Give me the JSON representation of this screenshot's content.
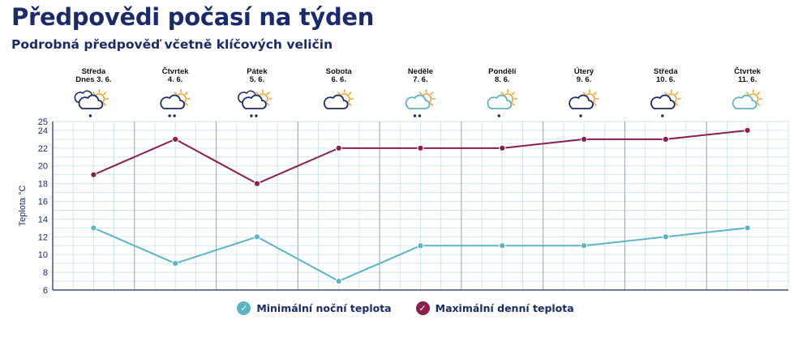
{
  "header": {
    "title": "Předpovědi počasí na týden",
    "subtitle": "Podrobná předpověď včetně klíčových veličin"
  },
  "colors": {
    "min_series": "#5ab4c5",
    "max_series": "#8b1d4f",
    "grid": "#cfe6ee",
    "separator": "#9aa6b8",
    "axis": "#1b2a6b",
    "sun": "#f0a330",
    "cloud_outline": "#1b2a6b",
    "cloud_light": "#5ab4c5"
  },
  "days": [
    {
      "day": "Středa",
      "date": "Dnes 3. 6.",
      "icon": "cloud-sun-rain-icon",
      "cloud": "dark-double",
      "rain": 1
    },
    {
      "day": "Čtvrtek",
      "date": "4. 6.",
      "icon": "cloud-sun-rain-icon",
      "cloud": "dark",
      "rain": 2
    },
    {
      "day": "Pátek",
      "date": "5. 6.",
      "icon": "cloud-sun-rain-icon",
      "cloud": "dark-double",
      "rain": 2
    },
    {
      "day": "Sobota",
      "date": "6. 6.",
      "icon": "cloud-sun-icon",
      "cloud": "dark",
      "rain": 0
    },
    {
      "day": "Neděle",
      "date": "7. 6.",
      "icon": "cloud-sun-rain-icon",
      "cloud": "light",
      "rain": 2
    },
    {
      "day": "Pondělí",
      "date": "8. 6.",
      "icon": "cloud-sun-rain-icon",
      "cloud": "light",
      "rain": 1
    },
    {
      "day": "Úterý",
      "date": "9. 6.",
      "icon": "cloud-sun-rain-icon",
      "cloud": "dark",
      "rain": 1
    },
    {
      "day": "Středa",
      "date": "10. 6.",
      "icon": "cloud-sun-rain-icon",
      "cloud": "dark",
      "rain": 1
    },
    {
      "day": "Čtvrtek",
      "date": "11. 6.",
      "icon": "cloud-sun-icon",
      "cloud": "light",
      "rain": 0
    }
  ],
  "legend": {
    "min_label": "Minimální noční teplota",
    "max_label": "Maximální denní teplota"
  },
  "chart_data": {
    "type": "line",
    "ylabel": "Teplota °C",
    "ylim": [
      6,
      25
    ],
    "yticks": [
      6,
      8,
      10,
      12,
      14,
      16,
      18,
      20,
      22,
      24,
      25
    ],
    "grid": true,
    "legend_position": "bottom",
    "series": [
      {
        "name": "Minimální noční teplota",
        "values": [
          13,
          9,
          12,
          7,
          11,
          11,
          11,
          12,
          13
        ]
      },
      {
        "name": "Maximální denní teplota",
        "values": [
          19,
          23,
          18,
          22,
          22,
          22,
          23,
          23,
          24
        ]
      }
    ]
  }
}
